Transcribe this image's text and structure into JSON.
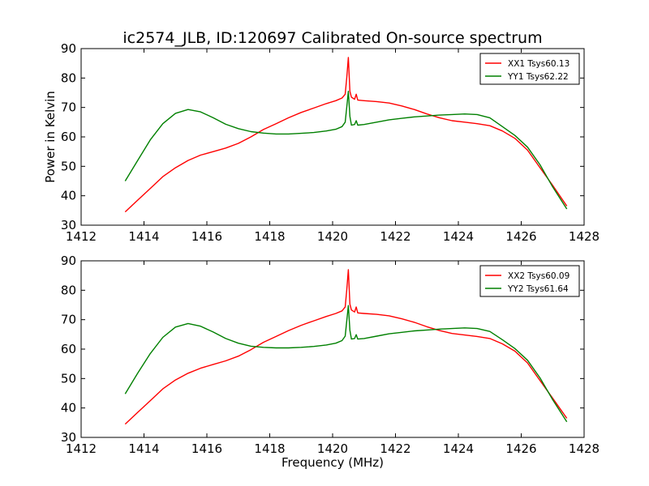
{
  "title": "ic2574_JLB, ID:120697 Calibrated On-source spectrum",
  "chart_data": [
    {
      "type": "line",
      "ylabel": "Power in Kelvin",
      "xlabel": "",
      "xlim": [
        1412,
        1428
      ],
      "ylim": [
        30,
        90
      ],
      "xticks": [
        "1412",
        "1414",
        "1416",
        "1418",
        "1420",
        "1422",
        "1424",
        "1426",
        "1428"
      ],
      "yticks": [
        "30",
        "40",
        "50",
        "60",
        "70",
        "80",
        "90"
      ],
      "grid": false,
      "legend_position": "top-right",
      "series": [
        {
          "name": "XX1 Tsys60.13",
          "color": "#ff0000",
          "x": [
            1413.4,
            1413.8,
            1414.2,
            1414.6,
            1415.0,
            1415.4,
            1415.8,
            1416.2,
            1416.6,
            1417.0,
            1417.4,
            1417.8,
            1418.2,
            1418.6,
            1419.0,
            1419.4,
            1419.8,
            1420.1,
            1420.3,
            1420.4,
            1420.45,
            1420.5,
            1420.55,
            1420.6,
            1420.7,
            1420.75,
            1420.8,
            1421.0,
            1421.4,
            1421.8,
            1422.2,
            1422.6,
            1423.0,
            1423.4,
            1423.8,
            1424.2,
            1424.6,
            1425.0,
            1425.4,
            1425.8,
            1426.2,
            1426.6,
            1427.0,
            1427.45
          ],
          "y": [
            34.5,
            38.5,
            42.5,
            46.5,
            49.5,
            52.0,
            53.8,
            55.0,
            56.2,
            57.8,
            60.0,
            62.5,
            64.5,
            66.5,
            68.3,
            69.8,
            71.3,
            72.3,
            73.2,
            74.5,
            80.0,
            87.0,
            75.5,
            73.5,
            72.8,
            74.5,
            72.5,
            72.3,
            72.0,
            71.5,
            70.5,
            69.3,
            67.8,
            66.5,
            65.5,
            65.0,
            64.5,
            63.8,
            62.0,
            59.5,
            55.5,
            49.5,
            43.5,
            36.5
          ]
        },
        {
          "name": "YY1 Tsys62.22",
          "color": "#008000",
          "x": [
            1413.4,
            1413.8,
            1414.2,
            1414.6,
            1415.0,
            1415.4,
            1415.8,
            1416.2,
            1416.6,
            1417.0,
            1417.4,
            1417.8,
            1418.2,
            1418.6,
            1419.0,
            1419.4,
            1419.8,
            1420.1,
            1420.3,
            1420.4,
            1420.45,
            1420.5,
            1420.55,
            1420.6,
            1420.7,
            1420.75,
            1420.8,
            1421.0,
            1421.4,
            1421.8,
            1422.2,
            1422.6,
            1423.0,
            1423.4,
            1423.8,
            1424.2,
            1424.6,
            1425.0,
            1425.4,
            1425.8,
            1426.2,
            1426.6,
            1427.0,
            1427.45
          ],
          "y": [
            45.0,
            52.0,
            59.0,
            64.5,
            68.0,
            69.3,
            68.5,
            66.5,
            64.3,
            62.8,
            61.8,
            61.3,
            61.0,
            61.0,
            61.2,
            61.5,
            62.0,
            62.6,
            63.5,
            65.0,
            70.0,
            75.5,
            67.0,
            64.0,
            64.2,
            65.5,
            64.0,
            64.2,
            65.0,
            65.8,
            66.3,
            66.8,
            67.1,
            67.4,
            67.6,
            67.8,
            67.6,
            66.5,
            63.5,
            60.5,
            56.5,
            50.5,
            43.0,
            35.5
          ]
        }
      ]
    },
    {
      "type": "line",
      "ylabel": "",
      "xlabel": "Frequency (MHz)",
      "xlim": [
        1412,
        1428
      ],
      "ylim": [
        30,
        90
      ],
      "xticks": [
        "1412",
        "1414",
        "1416",
        "1418",
        "1420",
        "1422",
        "1424",
        "1426",
        "1428"
      ],
      "yticks": [
        "30",
        "40",
        "50",
        "60",
        "70",
        "80",
        "90"
      ],
      "grid": false,
      "legend_position": "top-right",
      "series": [
        {
          "name": "XX2 Tsys60.09",
          "color": "#ff0000",
          "x": [
            1413.4,
            1413.8,
            1414.2,
            1414.6,
            1415.0,
            1415.4,
            1415.8,
            1416.2,
            1416.6,
            1417.0,
            1417.4,
            1417.8,
            1418.2,
            1418.6,
            1419.0,
            1419.4,
            1419.8,
            1420.1,
            1420.3,
            1420.4,
            1420.45,
            1420.5,
            1420.55,
            1420.6,
            1420.7,
            1420.75,
            1420.8,
            1421.0,
            1421.4,
            1421.8,
            1422.2,
            1422.6,
            1423.0,
            1423.4,
            1423.8,
            1424.2,
            1424.6,
            1425.0,
            1425.4,
            1425.8,
            1426.2,
            1426.6,
            1427.0,
            1427.45
          ],
          "y": [
            34.5,
            38.5,
            42.5,
            46.5,
            49.5,
            51.8,
            53.5,
            54.8,
            56.0,
            57.6,
            59.8,
            62.3,
            64.3,
            66.3,
            68.1,
            69.6,
            71.1,
            72.1,
            73.0,
            74.3,
            80.0,
            87.0,
            75.3,
            73.3,
            72.6,
            74.3,
            72.3,
            72.1,
            71.8,
            71.3,
            70.3,
            69.1,
            67.6,
            66.3,
            65.3,
            64.8,
            64.3,
            63.6,
            61.8,
            59.3,
            55.3,
            49.3,
            43.3,
            36.5
          ]
        },
        {
          "name": "YY2 Tsys61.64",
          "color": "#008000",
          "x": [
            1413.4,
            1413.8,
            1414.2,
            1414.6,
            1415.0,
            1415.4,
            1415.8,
            1416.2,
            1416.6,
            1417.0,
            1417.4,
            1417.8,
            1418.2,
            1418.6,
            1419.0,
            1419.4,
            1419.8,
            1420.1,
            1420.3,
            1420.4,
            1420.45,
            1420.5,
            1420.55,
            1420.6,
            1420.7,
            1420.75,
            1420.8,
            1421.0,
            1421.4,
            1421.8,
            1422.2,
            1422.6,
            1423.0,
            1423.4,
            1423.8,
            1424.2,
            1424.6,
            1425.0,
            1425.4,
            1425.8,
            1426.2,
            1426.6,
            1427.0,
            1427.45
          ],
          "y": [
            44.8,
            51.8,
            58.5,
            64.0,
            67.5,
            68.7,
            67.8,
            65.8,
            63.6,
            62.0,
            61.0,
            60.6,
            60.4,
            60.4,
            60.6,
            60.9,
            61.4,
            62.0,
            62.9,
            64.4,
            69.5,
            74.8,
            66.4,
            63.4,
            63.6,
            64.9,
            63.4,
            63.6,
            64.4,
            65.2,
            65.7,
            66.2,
            66.5,
            66.8,
            67.0,
            67.2,
            67.0,
            66.0,
            63.2,
            60.2,
            56.2,
            50.2,
            42.8,
            35.3
          ]
        }
      ]
    }
  ]
}
